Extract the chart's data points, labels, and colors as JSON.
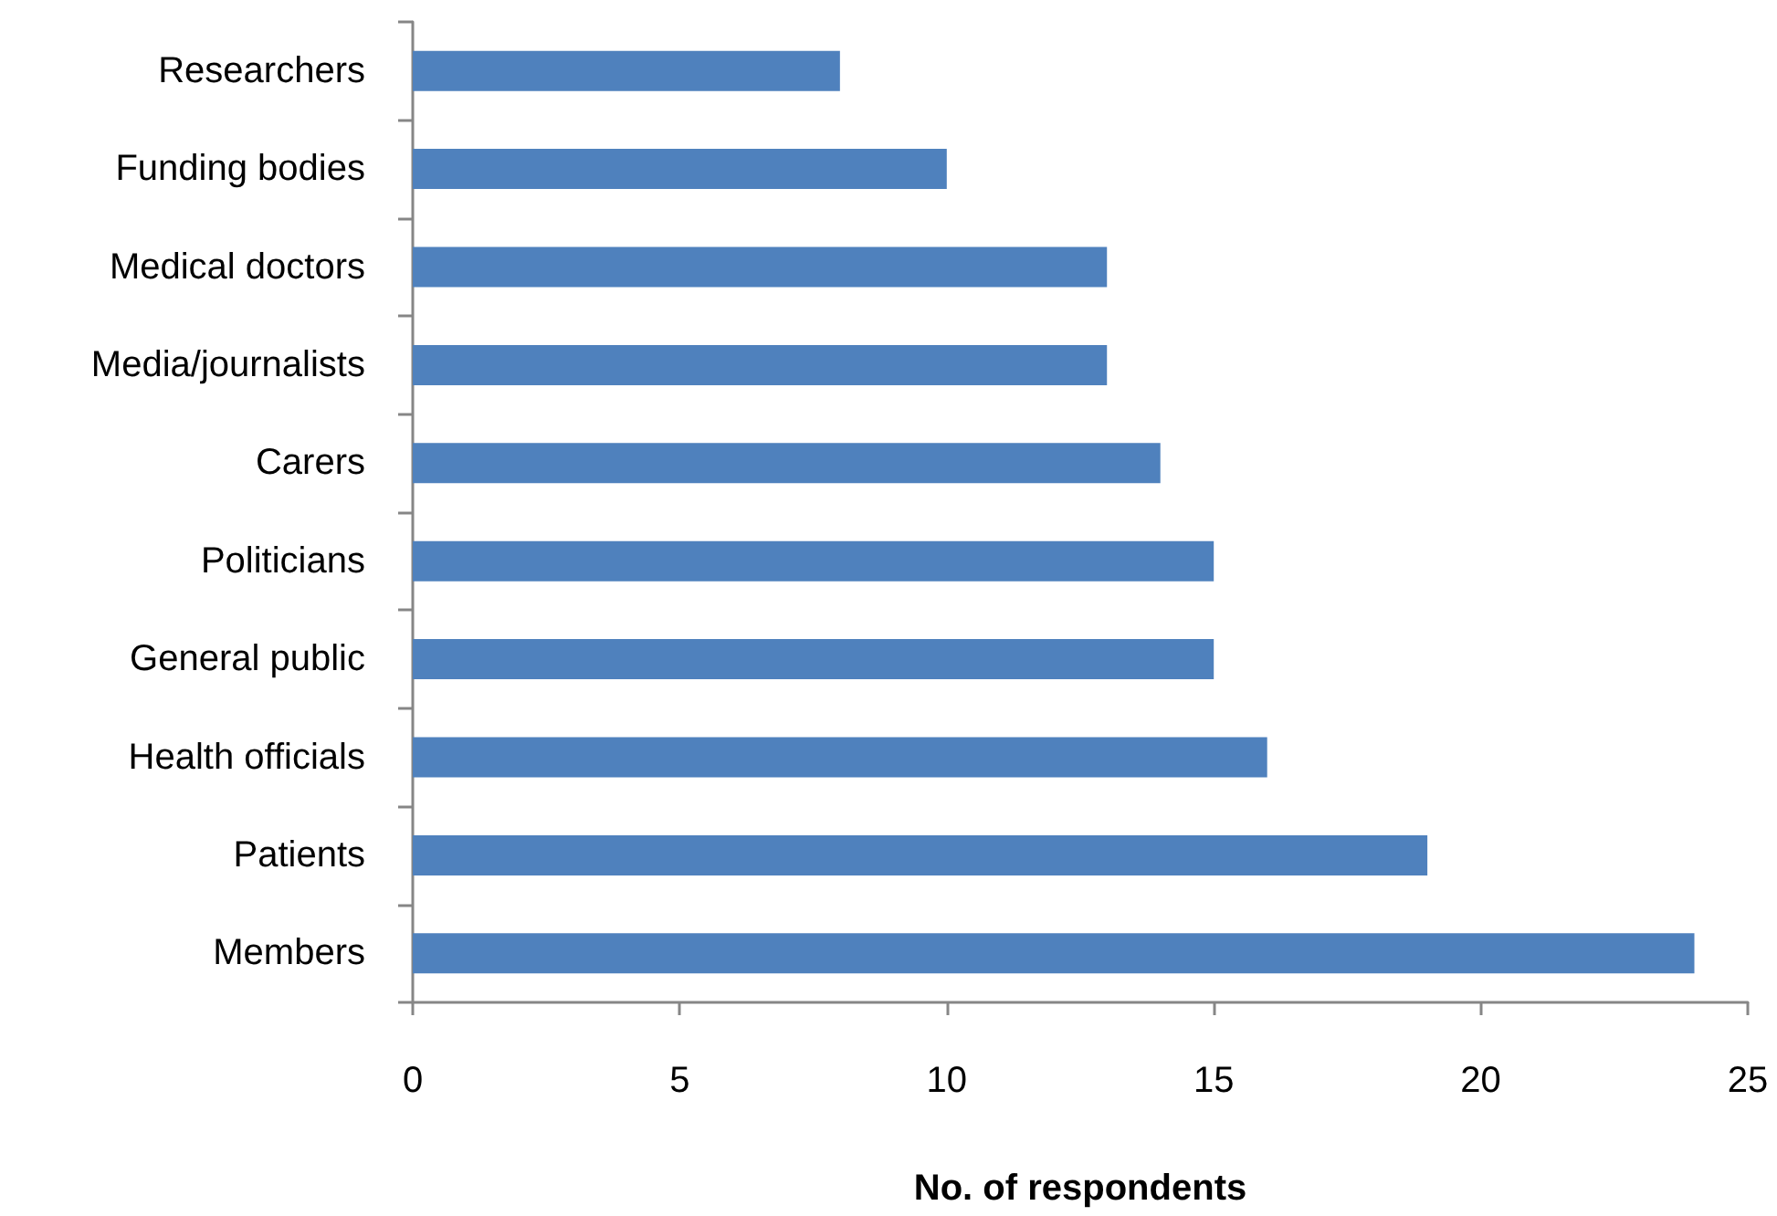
{
  "chart_data": {
    "type": "bar",
    "orientation": "horizontal",
    "categories": [
      "Researchers",
      "Funding bodies",
      "Medical doctors",
      "Media/journalists",
      "Carers",
      "Politicians",
      "General public",
      "Health officials",
      "Patients",
      "Members"
    ],
    "values": [
      8,
      10,
      13,
      13,
      14,
      15,
      15,
      16,
      19,
      24
    ],
    "color": "#4f81bd",
    "xlabel": "No. of respondents",
    "xlim": [
      0,
      25
    ],
    "xticks": [
      0,
      5,
      10,
      15,
      20,
      25
    ]
  }
}
